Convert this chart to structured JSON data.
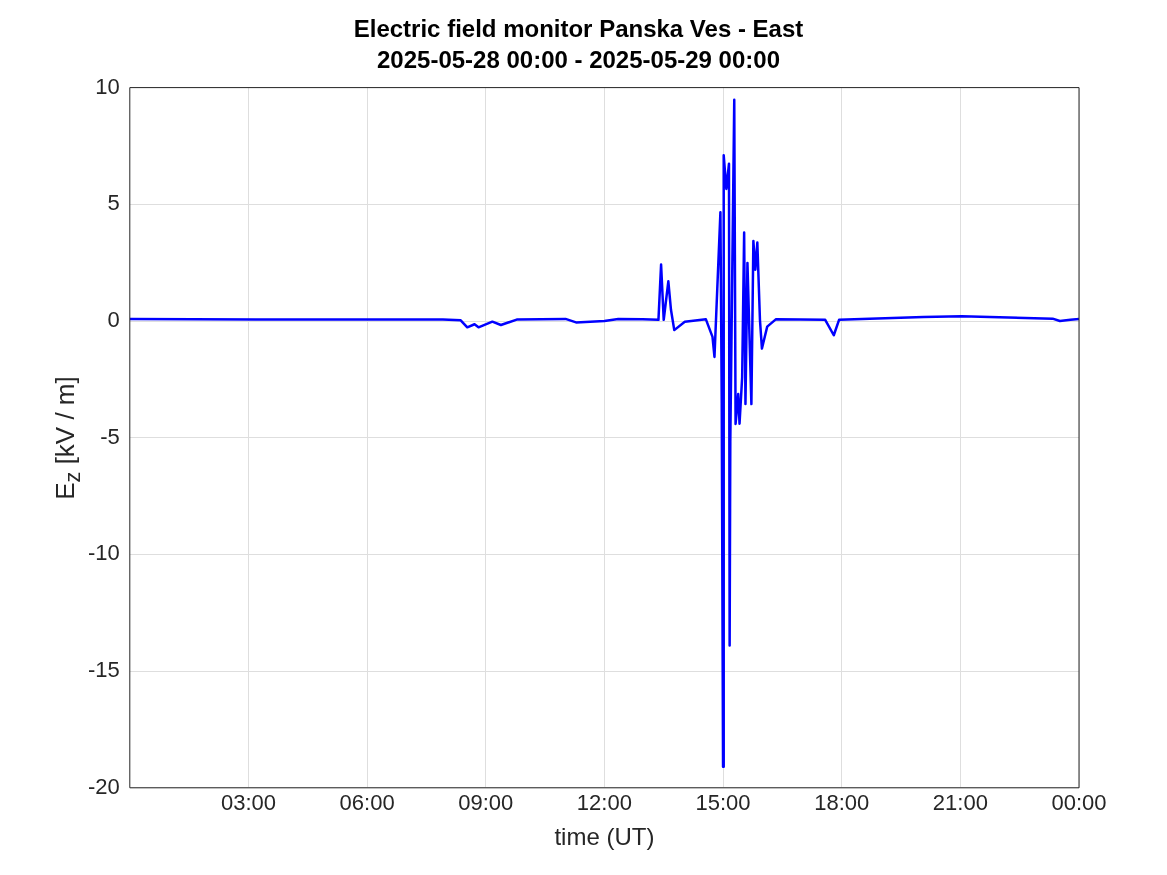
{
  "chart_data": {
    "type": "line",
    "title": "Electric field monitor Panska Ves - East",
    "subtitle": "2025-05-28 00:00 - 2025-05-29 00:00",
    "xlabel": "time (UT)",
    "ylabel": "E$_{z}$ [kV / m]",
    "x": [
      "2025-05-28T00:00",
      "2025-05-28T04:23",
      "2025-05-28T07:55",
      "2025-05-28T08:22",
      "2025-05-28T08:32",
      "2025-05-28T08:43",
      "2025-05-28T08:49",
      "2025-05-28T09:10",
      "2025-05-28T09:23",
      "2025-05-28T09:47",
      "2025-05-28T11:01",
      "2025-05-28T11:17",
      "2025-05-28T12:00",
      "2025-05-28T12:21",
      "2025-05-28T12:58",
      "2025-05-28T13:22",
      "2025-05-28T13:26",
      "2025-05-28T13:30",
      "2025-05-28T13:37",
      "2025-05-28T13:41",
      "2025-05-28T13:46",
      "2025-05-28T14:02",
      "2025-05-28T14:34",
      "2025-05-28T14:44",
      "2025-05-28T14:47",
      "2025-05-28T14:56",
      "2025-05-28T14:58",
      "2025-05-28T15:00",
      "2025-05-28T15:01",
      "2025-05-28T15:05",
      "2025-05-28T15:09",
      "2025-05-28T15:10",
      "2025-05-28T15:11",
      "2025-05-28T15:17",
      "2025-05-28T15:19",
      "2025-05-28T15:23",
      "2025-05-28T15:25",
      "2025-05-28T15:29",
      "2025-05-28T15:32",
      "2025-05-28T15:34",
      "2025-05-28T15:37",
      "2025-05-28T15:43",
      "2025-05-28T15:46",
      "2025-05-28T15:49",
      "2025-05-28T15:52",
      "2025-05-28T15:56",
      "2025-05-28T15:59",
      "2025-05-28T16:07",
      "2025-05-28T16:20",
      "2025-05-28T17:35",
      "2025-05-28T17:48",
      "2025-05-28T17:56",
      "2025-05-28T20:04",
      "2025-05-28T21:02",
      "2025-05-28T23:20",
      "2025-05-28T23:31",
      "2025-05-28T23:47",
      "2025-05-29T00:00"
    ],
    "series": [
      {
        "color": "#0000ff",
        "values": [
          0.09,
          0.06,
          0.06,
          0.03,
          -0.27,
          -0.14,
          -0.27,
          -0.03,
          -0.17,
          0.06,
          0.09,
          -0.06,
          0,
          0.09,
          0.07,
          0.05,
          2.42,
          0.05,
          1.7,
          0.48,
          -0.39,
          -0.03,
          0.07,
          -0.68,
          -1.54,
          4.66,
          -3.42,
          -19.1,
          7.1,
          5.66,
          6.74,
          -13.9,
          -5.15,
          9.48,
          -4.41,
          -3.13,
          -4.4,
          -2.41,
          3.79,
          -3.56,
          2.49,
          -3.56,
          3.43,
          2.2,
          3.36,
          0.04,
          -1.18,
          -0.24,
          0.07,
          0.05,
          -0.61,
          0.05,
          0.17,
          0.2,
          0.1,
          0,
          0.05,
          0.09
        ]
      }
    ],
    "xlim": [
      "2025-05-28T00:00",
      "2025-05-29T00:00"
    ],
    "xticks": [
      {
        "value": "2025-05-28T03:00",
        "label": "03:00"
      },
      {
        "value": "2025-05-28T06:00",
        "label": "06:00"
      },
      {
        "value": "2025-05-28T09:00",
        "label": "09:00"
      },
      {
        "value": "2025-05-28T12:00",
        "label": "12:00"
      },
      {
        "value": "2025-05-28T15:00",
        "label": "15:00"
      },
      {
        "value": "2025-05-28T18:00",
        "label": "18:00"
      },
      {
        "value": "2025-05-28T21:00",
        "label": "21:00"
      },
      {
        "value": "2025-05-29T00:00",
        "label": "00:00"
      }
    ],
    "ylim": [
      -20,
      10
    ],
    "yticks": [
      -20,
      -15,
      -10,
      -5,
      0,
      5,
      10
    ],
    "grid": true,
    "legend": false,
    "marker": "none",
    "line_style": "solid"
  }
}
